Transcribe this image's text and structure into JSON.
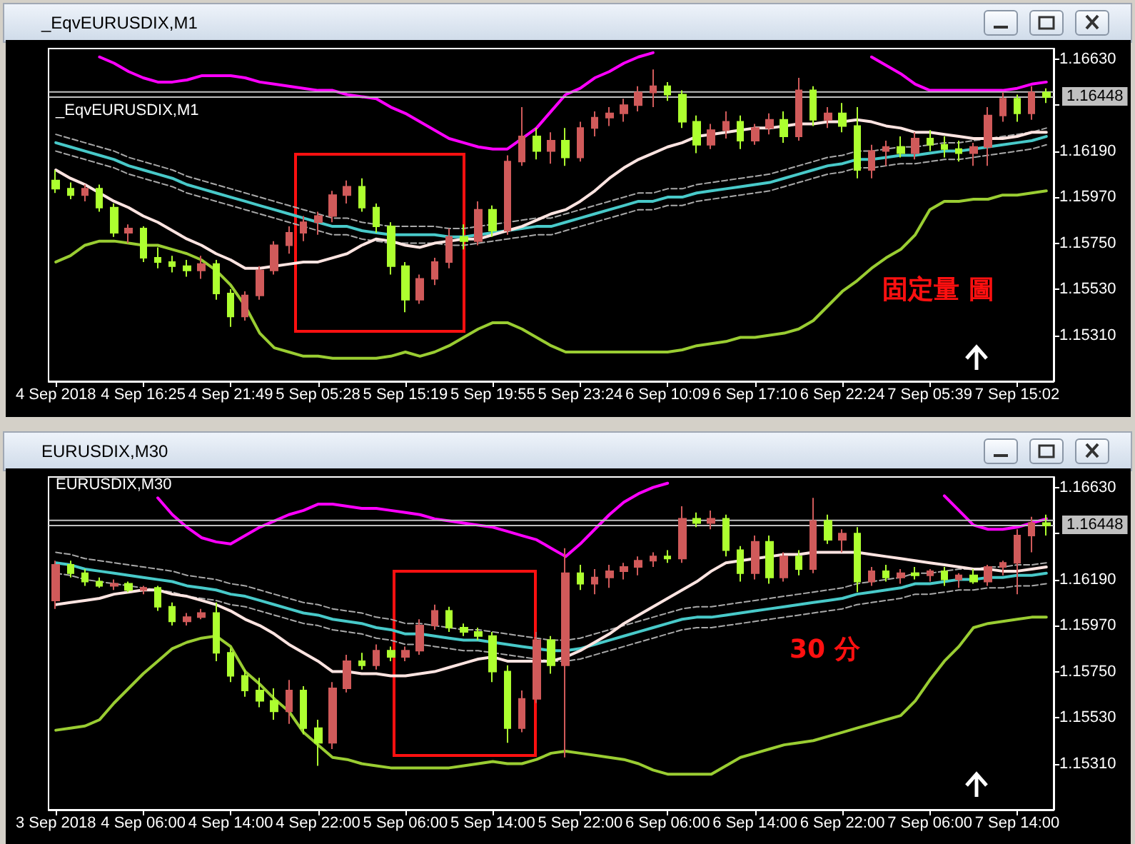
{
  "chart_data": [
    {
      "type": "candlestick",
      "title": "_EqvEURUSDIX,M1",
      "subtitle": "_EqvEURUSDIX,M1",
      "annotations": [
        "固定量 圖"
      ],
      "categories": [
        "4 Sep 2018",
        null,
        null,
        null,
        null,
        null,
        "4 Sep 16:25",
        null,
        null,
        null,
        null,
        null,
        "4 Sep 21:49",
        null,
        null,
        null,
        null,
        null,
        "5 Sep 05:28",
        null,
        null,
        null,
        null,
        null,
        "5 Sep 15:19",
        null,
        null,
        null,
        null,
        null,
        "5 Sep 19:55",
        null,
        null,
        null,
        null,
        null,
        "5 Sep 23:24",
        null,
        null,
        null,
        null,
        null,
        "6 Sep 10:09",
        null,
        null,
        null,
        null,
        null,
        "6 Sep 17:10",
        null,
        null,
        null,
        null,
        null,
        "6 Sep 22:24",
        null,
        null,
        null,
        null,
        null,
        "7 Sep 05:39",
        null,
        null,
        null,
        null,
        null,
        "7 Sep 15:02",
        null,
        null
      ],
      "ohlc": [
        [
          1.1605,
          1.161,
          1.1599,
          1.1601
        ],
        [
          1.1601,
          1.1604,
          1.1596,
          1.1598
        ],
        [
          1.1598,
          1.1603,
          1.1595,
          1.1601
        ],
        [
          1.1601,
          1.1603,
          1.159,
          1.1592
        ],
        [
          1.1592,
          1.1594,
          1.1578,
          1.158
        ],
        [
          1.158,
          1.1584,
          1.1575,
          1.1582
        ],
        [
          1.1582,
          1.1583,
          1.1566,
          1.1568
        ],
        [
          1.1568,
          1.1573,
          1.1563,
          1.1566
        ],
        [
          1.1566,
          1.1569,
          1.1561,
          1.1564
        ],
        [
          1.1564,
          1.1567,
          1.1559,
          1.1562
        ],
        [
          1.1562,
          1.1569,
          1.1558,
          1.1565
        ],
        [
          1.1565,
          1.1567,
          1.1548,
          1.1551
        ],
        [
          1.1551,
          1.1553,
          1.1535,
          1.154
        ],
        [
          1.154,
          1.1552,
          1.1538,
          1.155
        ],
        [
          1.155,
          1.1564,
          1.1548,
          1.1562
        ],
        [
          1.1562,
          1.1576,
          1.156,
          1.1574
        ],
        [
          1.1574,
          1.1583,
          1.157,
          1.158
        ],
        [
          1.158,
          1.1588,
          1.1576,
          1.1585
        ],
        [
          1.1585,
          1.159,
          1.1579,
          1.1588
        ],
        [
          1.1588,
          1.16,
          1.1585,
          1.1598
        ],
        [
          1.1598,
          1.1605,
          1.1594,
          1.1602
        ],
        [
          1.1602,
          1.1606,
          1.159,
          1.1592
        ],
        [
          1.1592,
          1.1594,
          1.158,
          1.1583
        ],
        [
          1.1583,
          1.1585,
          1.156,
          1.1564
        ],
        [
          1.1564,
          1.1566,
          1.1542,
          1.1548
        ],
        [
          1.1548,
          1.156,
          1.1546,
          1.1558
        ],
        [
          1.1558,
          1.1568,
          1.1555,
          1.1566
        ],
        [
          1.1566,
          1.1582,
          1.1563,
          1.1578
        ],
        [
          1.1578,
          1.1584,
          1.1572,
          1.1576
        ],
        [
          1.1576,
          1.1595,
          1.1574,
          1.1591
        ],
        [
          1.1591,
          1.1593,
          1.1578,
          1.1581
        ],
        [
          1.1581,
          1.1617,
          1.1579,
          1.1614
        ],
        [
          1.1614,
          1.164,
          1.1612,
          1.1626
        ],
        [
          1.1626,
          1.163,
          1.1615,
          1.1619
        ],
        [
          1.1619,
          1.1628,
          1.1613,
          1.1624
        ],
        [
          1.1624,
          1.163,
          1.1612,
          1.1616
        ],
        [
          1.1616,
          1.1633,
          1.1614,
          1.163
        ],
        [
          1.163,
          1.1638,
          1.1626,
          1.1635
        ],
        [
          1.1635,
          1.164,
          1.1631,
          1.1637
        ],
        [
          1.1637,
          1.1644,
          1.1633,
          1.1641
        ],
        [
          1.1641,
          1.165,
          1.1638,
          1.1647
        ],
        [
          1.1647,
          1.1658,
          1.164,
          1.165
        ],
        [
          1.165,
          1.1652,
          1.1643,
          1.1646
        ],
        [
          1.1646,
          1.1648,
          1.163,
          1.1633
        ],
        [
          1.1633,
          1.1636,
          1.1618,
          1.1622
        ],
        [
          1.1622,
          1.1632,
          1.162,
          1.1629
        ],
        [
          1.1629,
          1.1638,
          1.1625,
          1.1633
        ],
        [
          1.1633,
          1.1636,
          1.162,
          1.1624
        ],
        [
          1.1624,
          1.1632,
          1.1622,
          1.163
        ],
        [
          1.163,
          1.1637,
          1.1627,
          1.1634
        ],
        [
          1.1634,
          1.1638,
          1.1623,
          1.1626
        ],
        [
          1.1626,
          1.1654,
          1.1624,
          1.1648
        ],
        [
          1.1648,
          1.165,
          1.1631,
          1.1634
        ],
        [
          1.1634,
          1.164,
          1.163,
          1.1637
        ],
        [
          1.1637,
          1.1642,
          1.1628,
          1.1631
        ],
        [
          1.1631,
          1.164,
          1.1606,
          1.161
        ],
        [
          1.161,
          1.1622,
          1.1606,
          1.1619
        ],
        [
          1.1619,
          1.1624,
          1.1612,
          1.1621
        ],
        [
          1.1621,
          1.1626,
          1.1616,
          1.1618
        ],
        [
          1.1618,
          1.1628,
          1.1615,
          1.1625
        ],
        [
          1.1625,
          1.1629,
          1.1619,
          1.1622
        ],
        [
          1.1622,
          1.1626,
          1.1616,
          1.162
        ],
        [
          1.162,
          1.1624,
          1.1614,
          1.1618
        ],
        [
          1.1618,
          1.1623,
          1.1612,
          1.1621
        ],
        [
          1.1621,
          1.164,
          1.1612,
          1.1636
        ],
        [
          1.1636,
          1.1647,
          1.1633,
          1.1644
        ],
        [
          1.1644,
          1.1646,
          1.1633,
          1.1637
        ],
        [
          1.1637,
          1.165,
          1.1634,
          1.1647
        ],
        [
          1.1647,
          1.1649,
          1.1642,
          1.16448
        ]
      ],
      "colors": [
        "#adff2f",
        "#adff2f",
        "#d05a5a",
        "#adff2f",
        "#adff2f",
        "#d05a5a",
        "#adff2f",
        "#adff2f",
        "#adff2f",
        "#adff2f",
        "#d05a5a",
        "#adff2f",
        "#adff2f",
        "#d05a5a",
        "#d05a5a",
        "#d05a5a",
        "#d05a5a",
        "#d05a5a",
        "#d05a5a",
        "#d05a5a",
        "#d05a5a",
        "#adff2f",
        "#adff2f",
        "#adff2f",
        "#adff2f",
        "#d05a5a",
        "#d05a5a",
        "#d05a5a",
        "#adff2f",
        "#d05a5a",
        "#adff2f",
        "#d05a5a",
        "#d05a5a",
        "#adff2f",
        "#d05a5a",
        "#adff2f",
        "#d05a5a",
        "#d05a5a",
        "#d05a5a",
        "#d05a5a",
        "#d05a5a",
        "#d05a5a",
        "#adff2f",
        "#adff2f",
        "#adff2f",
        "#d05a5a",
        "#d05a5a",
        "#adff2f",
        "#d05a5a",
        "#d05a5a",
        "#adff2f",
        "#d05a5a",
        "#adff2f",
        "#d05a5a",
        "#adff2f",
        "#adff2f",
        "#d05a5a",
        "#d05a5a",
        "#adff2f",
        "#d05a5a",
        "#adff2f",
        "#adff2f",
        "#adff2f",
        "#d05a5a",
        "#d05a5a",
        "#d05a5a",
        "#adff2f",
        "#d05a5a",
        "#adff2f"
      ],
      "series": [
        {
          "type": "line",
          "color": "#ff00ff",
          "values": [
            null,
            null,
            null,
            1.1664,
            1.1661,
            1.1657,
            1.1654,
            1.1652,
            1.1652,
            1.1653,
            1.1655,
            1.1655,
            1.1655,
            1.1654,
            1.1652,
            1.1651,
            1.165,
            1.1649,
            1.1648,
            1.1648,
            1.1646,
            1.1645,
            1.1644,
            1.164,
            1.1637,
            1.1633,
            1.1629,
            1.1625,
            1.1623,
            1.1621,
            1.162,
            1.162,
            1.1625,
            1.163,
            1.1638,
            1.1646,
            1.1649,
            1.1654,
            1.1657,
            1.1661,
            1.1664,
            1.1666,
            null,
            null,
            null,
            null,
            null,
            null,
            null,
            null,
            null,
            null,
            null,
            null,
            null,
            null,
            1.1664,
            1.166,
            1.1656,
            1.1651,
            1.1648,
            1.1648,
            1.1648,
            1.1648,
            1.1648,
            1.1648,
            1.1649,
            1.1651,
            1.1652
          ]
        },
        {
          "type": "line",
          "color": "#9acd32",
          "values": [
            1.1566,
            1.1569,
            1.1574,
            1.1576,
            1.1576,
            1.1575,
            1.1574,
            1.1574,
            1.1572,
            1.157,
            1.1567,
            1.1562,
            1.1555,
            1.1545,
            1.1532,
            1.1525,
            1.1523,
            1.1521,
            1.1521,
            1.152,
            1.152,
            1.152,
            1.152,
            1.1521,
            1.1523,
            1.1521,
            1.1523,
            1.1526,
            1.153,
            1.1534,
            1.1537,
            1.1537,
            1.1534,
            1.153,
            1.1526,
            1.1523,
            1.1523,
            1.1523,
            1.1523,
            1.1523,
            1.1523,
            1.1523,
            1.1523,
            1.1524,
            1.1526,
            1.1527,
            1.1528,
            1.153,
            1.153,
            1.1531,
            1.1532,
            1.1534,
            1.1538,
            1.1545,
            1.1552,
            1.1557,
            1.1563,
            1.1568,
            1.1572,
            1.1579,
            1.1591,
            1.1595,
            1.1595,
            1.1596,
            1.1596,
            1.1598,
            1.1598,
            1.1599,
            1.16
          ]
        },
        {
          "type": "line",
          "color": "#a9a9a9",
          "line_style": "dashed",
          "values": [
            1.1627,
            1.1625,
            1.1623,
            1.1621,
            1.1619,
            1.1616,
            1.1614,
            1.1612,
            1.161,
            1.1607,
            1.1605,
            1.1603,
            1.1601,
            1.1599,
            1.1597,
            1.1595,
            1.1593,
            1.1591,
            1.1589,
            1.1587,
            1.1587,
            1.1585,
            1.1584,
            1.1583,
            1.1583,
            1.1583,
            1.1583,
            1.1582,
            1.1582,
            1.1583,
            1.1584,
            1.1585,
            1.1586,
            1.1587,
            1.1587,
            1.1589,
            1.1591,
            1.1593,
            1.1595,
            1.1597,
            1.1599,
            1.1599,
            1.1601,
            1.1601,
            1.1603,
            1.1604,
            1.1605,
            1.1606,
            1.1607,
            1.1608,
            1.161,
            1.1612,
            1.1614,
            1.1616,
            1.1617,
            1.1619,
            1.1619,
            1.162,
            1.1621,
            1.1621,
            1.1622,
            1.1623,
            1.1623,
            1.1624,
            1.1625,
            1.1626,
            1.1627,
            1.1628,
            1.163
          ]
        },
        {
          "type": "line",
          "color": "#a9a9a9",
          "line_style": "dashed",
          "values": [
            1.1619,
            1.1617,
            1.1615,
            1.1613,
            1.1611,
            1.1608,
            1.1606,
            1.1604,
            1.1602,
            1.1599,
            1.1597,
            1.1595,
            1.1593,
            1.1591,
            1.1589,
            1.1587,
            1.1585,
            1.1583,
            1.1581,
            1.1579,
            1.1579,
            1.1577,
            1.1576,
            1.1575,
            1.1575,
            1.1575,
            1.1575,
            1.1574,
            1.1574,
            1.1575,
            1.1576,
            1.1577,
            1.1578,
            1.1579,
            1.1579,
            1.1581,
            1.1583,
            1.1585,
            1.1587,
            1.1589,
            1.1591,
            1.1591,
            1.1593,
            1.1593,
            1.1595,
            1.1596,
            1.1597,
            1.1598,
            1.1599,
            1.16,
            1.1602,
            1.1604,
            1.1606,
            1.1608,
            1.1609,
            1.1611,
            1.1611,
            1.1612,
            1.1613,
            1.1613,
            1.1614,
            1.1615,
            1.1615,
            1.1616,
            1.1617,
            1.1618,
            1.1619,
            1.162,
            1.1622
          ]
        },
        {
          "type": "line",
          "color": "#48c9c9",
          "values": [
            1.1623,
            1.1621,
            1.1619,
            1.1617,
            1.1615,
            1.1612,
            1.161,
            1.1608,
            1.1606,
            1.1603,
            1.1601,
            1.1599,
            1.1597,
            1.1595,
            1.1593,
            1.1591,
            1.1589,
            1.1587,
            1.1585,
            1.1583,
            1.1583,
            1.1581,
            1.158,
            1.1579,
            1.1579,
            1.1579,
            1.1579,
            1.1578,
            1.1578,
            1.1579,
            1.158,
            1.1581,
            1.1582,
            1.1583,
            1.1583,
            1.1585,
            1.1587,
            1.1589,
            1.1591,
            1.1593,
            1.1595,
            1.1595,
            1.1597,
            1.1597,
            1.1599,
            1.16,
            1.1601,
            1.1602,
            1.1603,
            1.1604,
            1.1606,
            1.1608,
            1.161,
            1.1612,
            1.1613,
            1.1615,
            1.1615,
            1.1616,
            1.1617,
            1.1617,
            1.1618,
            1.1619,
            1.1619,
            1.162,
            1.1621,
            1.1622,
            1.1623,
            1.1624,
            1.1626
          ]
        },
        {
          "type": "line",
          "color": "#ffe4e1",
          "values": [
            1.161,
            1.1606,
            1.1603,
            1.1599,
            1.1595,
            1.1592,
            1.1588,
            1.1585,
            1.1581,
            1.1577,
            1.1574,
            1.157,
            1.1567,
            1.1563,
            1.1563,
            1.1564,
            1.1565,
            1.1566,
            1.1566,
            1.1568,
            1.157,
            1.1574,
            1.1577,
            1.1576,
            1.1574,
            1.1573,
            1.1575,
            1.1576,
            1.1577,
            1.1577,
            1.1579,
            1.1581,
            1.1583,
            1.1586,
            1.1589,
            1.1591,
            1.1595,
            1.16,
            1.1606,
            1.1611,
            1.1615,
            1.1618,
            1.1621,
            1.1623,
            1.1626,
            1.1627,
            1.1628,
            1.1629,
            1.163,
            1.163,
            1.1631,
            1.1632,
            1.1632,
            1.1633,
            1.1633,
            1.1634,
            1.1633,
            1.1631,
            1.163,
            1.1628,
            1.1628,
            1.1627,
            1.1626,
            1.1625,
            1.1625,
            1.1625,
            1.1626,
            1.1628,
            1.1628
          ]
        }
      ],
      "ylim": [
        1.1509,
        1.1668
      ],
      "yticks": [
        {
          "value": 1.1663,
          "label": "1.16630"
        },
        {
          "value": 1.1641,
          "label": null
        },
        {
          "value": 1.1619,
          "label": "1.16190"
        },
        {
          "value": 1.1597,
          "label": "1.15970"
        },
        {
          "value": 1.1575,
          "label": "1.15750"
        },
        {
          "value": 1.1553,
          "label": "1.15530"
        },
        {
          "value": 1.1531,
          "label": "1.15310"
        }
      ],
      "ref_lines": [
        {
          "axis": "y",
          "value": 1.16473,
          "label": null,
          "color": "#c0c0c0"
        },
        {
          "axis": "y",
          "value": 1.16448,
          "label": "1.16448",
          "color": "#c0c0c0"
        }
      ],
      "grid": false,
      "marker": "none"
    },
    {
      "type": "candlestick",
      "title": "EURUSDIX,M30",
      "subtitle": "EURUSDIX,M30",
      "annotations": [
        "30 分"
      ],
      "categories": [
        "3 Sep 2018",
        null,
        null,
        null,
        null,
        null,
        "4 Sep 06:00",
        null,
        null,
        null,
        null,
        null,
        "4 Sep 14:00",
        null,
        null,
        null,
        null,
        null,
        "4 Sep 22:00",
        null,
        null,
        null,
        null,
        null,
        "5 Sep 06:00",
        null,
        null,
        null,
        null,
        null,
        "5 Sep 14:00",
        null,
        null,
        null,
        null,
        null,
        "5 Sep 22:00",
        null,
        null,
        null,
        null,
        null,
        "6 Sep 06:00",
        null,
        null,
        null,
        null,
        null,
        "6 Sep 14:00",
        null,
        null,
        null,
        null,
        null,
        "6 Sep 22:00",
        null,
        null,
        null,
        null,
        null,
        "7 Sep 06:00",
        null,
        null,
        null,
        null,
        null,
        "7 Sep 14:00",
        null,
        null
      ],
      "ohlc": [
        [
          1.1609,
          1.1628,
          1.1605,
          1.1626
        ],
        [
          1.1626,
          1.1628,
          1.162,
          1.1622
        ],
        [
          1.1622,
          1.1624,
          1.1616,
          1.1618
        ],
        [
          1.1618,
          1.162,
          1.1615,
          1.1616
        ],
        [
          1.1616,
          1.1619,
          1.1614,
          1.1617
        ],
        [
          1.1617,
          1.1618,
          1.1613,
          1.1614
        ],
        [
          1.1614,
          1.1616,
          1.1612,
          1.1615
        ],
        [
          1.1615,
          1.1616,
          1.1604,
          1.1606
        ],
        [
          1.1606,
          1.1608,
          1.1597,
          1.1599
        ],
        [
          1.1599,
          1.1603,
          1.1597,
          1.1601
        ],
        [
          1.1601,
          1.1605,
          1.16,
          1.1603
        ],
        [
          1.1603,
          1.1608,
          1.158,
          1.1584
        ],
        [
          1.1584,
          1.1586,
          1.157,
          1.1573
        ],
        [
          1.1573,
          1.1576,
          1.1563,
          1.1566
        ],
        [
          1.1566,
          1.1572,
          1.1558,
          1.1561
        ],
        [
          1.1561,
          1.1567,
          1.1552,
          1.1556
        ],
        [
          1.1556,
          1.1571,
          1.155,
          1.1566
        ],
        [
          1.1566,
          1.1568,
          1.1545,
          1.1548
        ],
        [
          1.1548,
          1.1552,
          1.153,
          1.1541
        ],
        [
          1.1541,
          1.157,
          1.1538,
          1.1567
        ],
        [
          1.1567,
          1.1583,
          1.1565,
          1.158
        ],
        [
          1.158,
          1.1584,
          1.1576,
          1.1578
        ],
        [
          1.1578,
          1.1588,
          1.1576,
          1.1585
        ],
        [
          1.1585,
          1.1587,
          1.158,
          1.1582
        ],
        [
          1.1582,
          1.1587,
          1.158,
          1.1585
        ],
        [
          1.1585,
          1.16,
          1.1583,
          1.1597
        ],
        [
          1.1597,
          1.1607,
          1.1595,
          1.1604
        ],
        [
          1.1604,
          1.1606,
          1.1594,
          1.1596
        ],
        [
          1.1596,
          1.1598,
          1.1592,
          1.1594
        ],
        [
          1.1594,
          1.1596,
          1.159,
          1.1592
        ],
        [
          1.1592,
          1.1594,
          1.157,
          1.1575
        ],
        [
          1.1575,
          1.1578,
          1.1541,
          1.1548
        ],
        [
          1.1548,
          1.1566,
          1.1546,
          1.1562
        ],
        [
          1.1562,
          1.1594,
          1.156,
          1.159
        ],
        [
          1.159,
          1.1592,
          1.1574,
          1.1578
        ],
        [
          1.1578,
          1.1634,
          1.1534,
          1.1622
        ],
        [
          1.1622,
          1.1626,
          1.1614,
          1.1617
        ],
        [
          1.1617,
          1.1624,
          1.1612,
          1.162
        ],
        [
          1.162,
          1.1626,
          1.1615,
          1.1623
        ],
        [
          1.1623,
          1.1627,
          1.1619,
          1.1625
        ],
        [
          1.1625,
          1.163,
          1.1621,
          1.1628
        ],
        [
          1.1628,
          1.1632,
          1.1625,
          1.163
        ],
        [
          1.163,
          1.1633,
          1.1627,
          1.1629
        ],
        [
          1.1629,
          1.1654,
          1.1627,
          1.1648
        ],
        [
          1.1648,
          1.1651,
          1.1644,
          1.1646
        ],
        [
          1.1646,
          1.1652,
          1.1643,
          1.1648
        ],
        [
          1.1648,
          1.165,
          1.163,
          1.1633
        ],
        [
          1.1633,
          1.1635,
          1.1618,
          1.1622
        ],
        [
          1.1622,
          1.164,
          1.1619,
          1.1637
        ],
        [
          1.1637,
          1.164,
          1.1617,
          1.162
        ],
        [
          1.162,
          1.1632,
          1.1618,
          1.163
        ],
        [
          1.163,
          1.1633,
          1.1621,
          1.1624
        ],
        [
          1.1624,
          1.1658,
          1.1622,
          1.1647
        ],
        [
          1.1647,
          1.165,
          1.1636,
          1.1638
        ],
        [
          1.1638,
          1.1643,
          1.1632,
          1.1641
        ],
        [
          1.1641,
          1.1644,
          1.1613,
          1.1618
        ],
        [
          1.1618,
          1.1625,
          1.1616,
          1.1623
        ],
        [
          1.1623,
          1.1626,
          1.1618,
          1.162
        ],
        [
          1.162,
          1.1624,
          1.1617,
          1.1622
        ],
        [
          1.1622,
          1.1625,
          1.1619,
          1.1621
        ],
        [
          1.1621,
          1.1624,
          1.1618,
          1.1623
        ],
        [
          1.1623,
          1.1625,
          1.1616,
          1.1619
        ],
        [
          1.1619,
          1.1622,
          1.1615,
          1.1621
        ],
        [
          1.1621,
          1.1624,
          1.1617,
          1.1618
        ],
        [
          1.1618,
          1.1626,
          1.1616,
          1.1625
        ],
        [
          1.1625,
          1.1628,
          1.1621,
          1.1627
        ],
        [
          1.1627,
          1.1643,
          1.1612,
          1.164
        ],
        [
          1.164,
          1.1649,
          1.1632,
          1.1646
        ],
        [
          1.1646,
          1.165,
          1.164,
          1.16448
        ]
      ],
      "colors": [
        "#d05a5a",
        "#adff2f",
        "#adff2f",
        "#adff2f",
        "#d05a5a",
        "#adff2f",
        "#d05a5a",
        "#adff2f",
        "#adff2f",
        "#d05a5a",
        "#d05a5a",
        "#adff2f",
        "#adff2f",
        "#adff2f",
        "#adff2f",
        "#adff2f",
        "#d05a5a",
        "#adff2f",
        "#adff2f",
        "#d05a5a",
        "#d05a5a",
        "#adff2f",
        "#d05a5a",
        "#adff2f",
        "#d05a5a",
        "#d05a5a",
        "#d05a5a",
        "#adff2f",
        "#adff2f",
        "#adff2f",
        "#adff2f",
        "#adff2f",
        "#d05a5a",
        "#d05a5a",
        "#adff2f",
        "#d05a5a",
        "#adff2f",
        "#d05a5a",
        "#d05a5a",
        "#d05a5a",
        "#d05a5a",
        "#d05a5a",
        "#adff2f",
        "#d05a5a",
        "#adff2f",
        "#d05a5a",
        "#adff2f",
        "#adff2f",
        "#d05a5a",
        "#adff2f",
        "#d05a5a",
        "#adff2f",
        "#d05a5a",
        "#adff2f",
        "#d05a5a",
        "#adff2f",
        "#d05a5a",
        "#adff2f",
        "#d05a5a",
        "#adff2f",
        "#d05a5a",
        "#adff2f",
        "#d05a5a",
        "#adff2f",
        "#d05a5a",
        "#d05a5a",
        "#d05a5a",
        "#d05a5a",
        "#adff2f"
      ],
      "series": [
        {
          "type": "line",
          "color": "#ff00ff",
          "values": [
            null,
            null,
            null,
            null,
            null,
            null,
            null,
            1.1658,
            1.165,
            1.1644,
            1.1639,
            1.1637,
            1.1636,
            1.164,
            1.1644,
            1.1647,
            1.165,
            1.1652,
            1.1655,
            1.1655,
            1.1654,
            1.1653,
            1.1653,
            1.1652,
            1.1651,
            1.165,
            1.1648,
            1.1647,
            1.1646,
            1.1645,
            1.1644,
            1.1642,
            1.164,
            1.1638,
            1.1634,
            1.163,
            1.1636,
            1.1643,
            1.165,
            1.1656,
            1.166,
            1.1663,
            1.1665,
            null,
            null,
            null,
            null,
            null,
            null,
            null,
            null,
            null,
            null,
            null,
            null,
            null,
            null,
            null,
            null,
            null,
            null,
            1.1659,
            1.1652,
            1.1645,
            1.1643,
            1.1643,
            1.1644,
            1.1646,
            1.1648
          ]
        },
        {
          "type": "line",
          "color": "#9acd32",
          "values": [
            1.1547,
            1.1548,
            1.1549,
            1.1552,
            1.156,
            1.1567,
            1.1574,
            1.158,
            1.1586,
            1.1589,
            1.1591,
            1.1592,
            1.1587,
            1.1575,
            1.1569,
            1.1562,
            1.1556,
            1.1546,
            1.154,
            1.1534,
            1.1533,
            1.1531,
            1.153,
            1.1529,
            1.1529,
            1.1529,
            1.1529,
            1.1529,
            1.153,
            1.1531,
            1.1532,
            1.1531,
            1.1531,
            1.1533,
            1.1536,
            1.1537,
            1.1536,
            1.1535,
            1.1534,
            1.1533,
            1.1531,
            1.1528,
            1.1526,
            1.1526,
            1.1526,
            1.1526,
            1.153,
            1.1534,
            1.1536,
            1.1538,
            1.154,
            1.1541,
            1.1542,
            1.1544,
            1.1546,
            1.1548,
            1.155,
            1.1552,
            1.1554,
            1.1561,
            1.1571,
            1.158,
            1.1587,
            1.1596,
            1.1598,
            1.1599,
            1.16,
            1.1601,
            1.1601
          ]
        },
        {
          "type": "line",
          "color": "#a9a9a9",
          "line_style": "dashed",
          "values": [
            1.1632,
            1.1631,
            1.1629,
            1.1628,
            1.1627,
            1.1626,
            1.1625,
            1.1624,
            1.1623,
            1.1621,
            1.162,
            1.1619,
            1.1617,
            1.1616,
            1.1614,
            1.1612,
            1.161,
            1.1608,
            1.1607,
            1.1605,
            1.1604,
            1.1603,
            1.1601,
            1.16,
            1.1598,
            1.1598,
            1.1597,
            1.1596,
            1.1595,
            1.1595,
            1.1594,
            1.1593,
            1.1592,
            1.1591,
            1.159,
            1.159,
            1.1591,
            1.1593,
            1.1595,
            1.1597,
            1.1599,
            1.1601,
            1.1603,
            1.1605,
            1.1606,
            1.1606,
            1.1607,
            1.1608,
            1.1609,
            1.161,
            1.1611,
            1.1612,
            1.1613,
            1.1614,
            1.1615,
            1.1617,
            1.1618,
            1.1619,
            1.162,
            1.1622,
            1.1622,
            1.1623,
            1.1624,
            1.1624,
            1.1625,
            1.1625,
            1.1626,
            1.1626,
            1.1627
          ]
        },
        {
          "type": "line",
          "color": "#a9a9a9",
          "line_style": "dashed",
          "values": [
            1.1622,
            1.1621,
            1.1619,
            1.1618,
            1.1617,
            1.1616,
            1.1615,
            1.1614,
            1.1613,
            1.1611,
            1.161,
            1.1609,
            1.1607,
            1.1606,
            1.1604,
            1.1602,
            1.16,
            1.1598,
            1.1597,
            1.1595,
            1.1594,
            1.1593,
            1.1591,
            1.159,
            1.1588,
            1.1588,
            1.1587,
            1.1586,
            1.1585,
            1.1585,
            1.1584,
            1.1583,
            1.1582,
            1.1581,
            1.158,
            1.158,
            1.1581,
            1.1583,
            1.1585,
            1.1587,
            1.1589,
            1.1591,
            1.1593,
            1.1595,
            1.1596,
            1.1596,
            1.1597,
            1.1598,
            1.1599,
            1.16,
            1.1601,
            1.1602,
            1.1603,
            1.1604,
            1.1605,
            1.1607,
            1.1608,
            1.1609,
            1.161,
            1.1612,
            1.1612,
            1.1613,
            1.1614,
            1.1614,
            1.1615,
            1.1615,
            1.1616,
            1.1616,
            1.1617
          ]
        },
        {
          "type": "line",
          "color": "#48c9c9",
          "values": [
            1.1627,
            1.1626,
            1.1624,
            1.1623,
            1.1622,
            1.1621,
            1.162,
            1.1619,
            1.1618,
            1.1616,
            1.1615,
            1.1614,
            1.1612,
            1.1611,
            1.1609,
            1.1607,
            1.1605,
            1.1603,
            1.1602,
            1.16,
            1.1599,
            1.1598,
            1.1596,
            1.1595,
            1.1593,
            1.1593,
            1.1592,
            1.1591,
            1.159,
            1.159,
            1.1589,
            1.1588,
            1.1587,
            1.1586,
            1.1585,
            1.1585,
            1.1586,
            1.1588,
            1.159,
            1.1592,
            1.1594,
            1.1596,
            1.1598,
            1.16,
            1.1601,
            1.1601,
            1.1602,
            1.1603,
            1.1604,
            1.1605,
            1.1606,
            1.1607,
            1.1608,
            1.1609,
            1.161,
            1.1612,
            1.1613,
            1.1614,
            1.1615,
            1.1617,
            1.1617,
            1.1618,
            1.1619,
            1.1619,
            1.162,
            1.162,
            1.1621,
            1.1621,
            1.1622
          ]
        },
        {
          "type": "line",
          "color": "#ffe4e1",
          "values": [
            1.1607,
            1.1608,
            1.1609,
            1.161,
            1.1612,
            1.1613,
            1.1614,
            1.1614,
            1.1612,
            1.1611,
            1.1609,
            1.1607,
            1.1604,
            1.16,
            1.1597,
            1.1593,
            1.1588,
            1.1584,
            1.158,
            1.1575,
            1.1575,
            1.1574,
            1.1574,
            1.1573,
            1.1573,
            1.1574,
            1.1575,
            1.1577,
            1.1579,
            1.1581,
            1.1582,
            1.158,
            1.158,
            1.158,
            1.158,
            1.1582,
            1.1585,
            1.1589,
            1.1593,
            1.1598,
            1.1602,
            1.1606,
            1.161,
            1.1614,
            1.1618,
            1.1623,
            1.1627,
            1.1628,
            1.1629,
            1.163,
            1.1631,
            1.1631,
            1.1632,
            1.1632,
            1.1632,
            1.1632,
            1.1631,
            1.163,
            1.1629,
            1.1628,
            1.1627,
            1.1626,
            1.1625,
            1.1624,
            1.1624,
            1.1623,
            1.1623,
            1.1624,
            1.1625
          ]
        }
      ],
      "ylim": [
        1.1509,
        1.1668
      ],
      "yticks": [
        {
          "value": 1.1663,
          "label": "1.16630"
        },
        {
          "value": 1.1641,
          "label": null
        },
        {
          "value": 1.1619,
          "label": "1.16190"
        },
        {
          "value": 1.1597,
          "label": "1.15970"
        },
        {
          "value": 1.1575,
          "label": "1.15750"
        },
        {
          "value": 1.1553,
          "label": "1.15530"
        },
        {
          "value": 1.1531,
          "label": "1.15310"
        }
      ],
      "ref_lines": [
        {
          "axis": "y",
          "value": 1.16473,
          "label": null,
          "color": "#c0c0c0"
        },
        {
          "axis": "y",
          "value": 1.16448,
          "label": "1.16448",
          "color": "#c0c0c0"
        }
      ],
      "grid": false,
      "marker": "none"
    }
  ]
}
